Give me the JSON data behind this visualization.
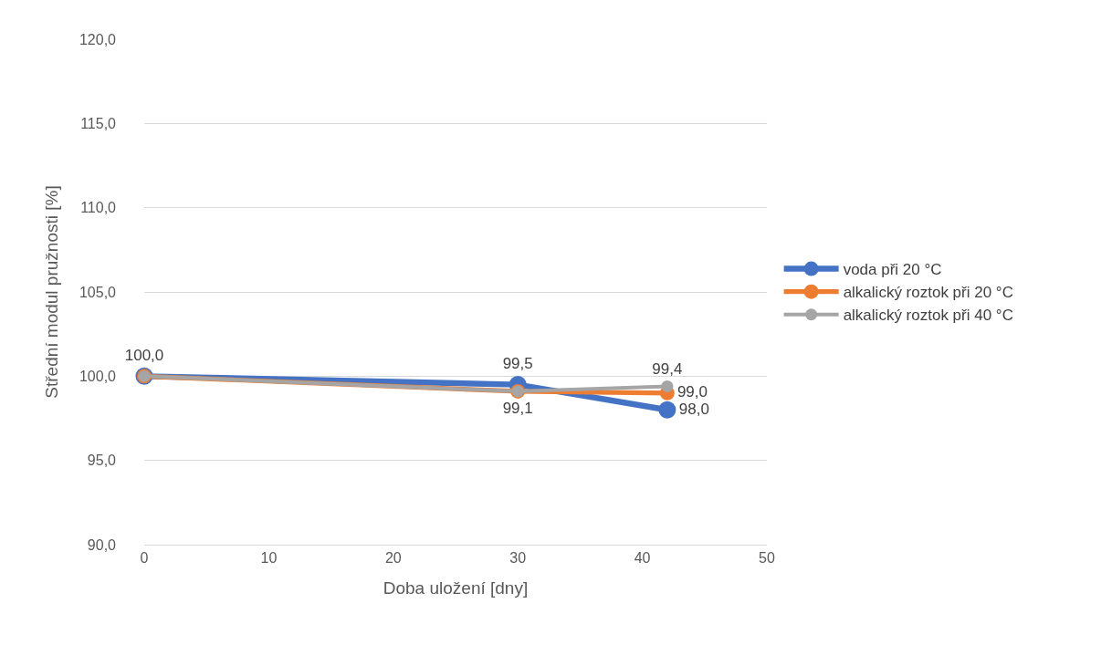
{
  "chart_data": {
    "type": "line",
    "xlabel": "Doba uložení [dny]",
    "ylabel": "Střední modul pružnosti [%]",
    "x": [
      0,
      30,
      42
    ],
    "series": [
      {
        "name": "voda při 20 °C",
        "color": "#4472c4",
        "values": [
          100.0,
          99.5,
          98.0
        ],
        "value_labels": [
          "100,0",
          "99,5",
          "98,0"
        ]
      },
      {
        "name": "alkalický roztok při 20 °C",
        "color": "#ed7d31",
        "values": [
          100.0,
          99.1,
          99.0
        ],
        "value_labels": [
          null,
          "99,1",
          "99,0"
        ]
      },
      {
        "name": "alkalický roztok při 40 °C",
        "color": "#a5a5a5",
        "values": [
          100.0,
          99.1,
          99.4
        ],
        "value_labels": [
          null,
          null,
          "99,4"
        ]
      }
    ],
    "xlim": [
      0,
      50
    ],
    "xticks": [
      0,
      10,
      20,
      30,
      40,
      50
    ],
    "ylim": [
      90,
      120
    ],
    "yticks": [
      {
        "value": 90,
        "label": "90,0"
      },
      {
        "value": 95,
        "label": "95,0"
      },
      {
        "value": 100,
        "label": "100,0"
      },
      {
        "value": 105,
        "label": "105,0"
      },
      {
        "value": 110,
        "label": "110,0"
      },
      {
        "value": 115,
        "label": "115,0"
      },
      {
        "value": 120,
        "label": "120,0"
      }
    ],
    "grid": "y",
    "legend": "right",
    "marker": "circle",
    "line_style": "solid"
  }
}
